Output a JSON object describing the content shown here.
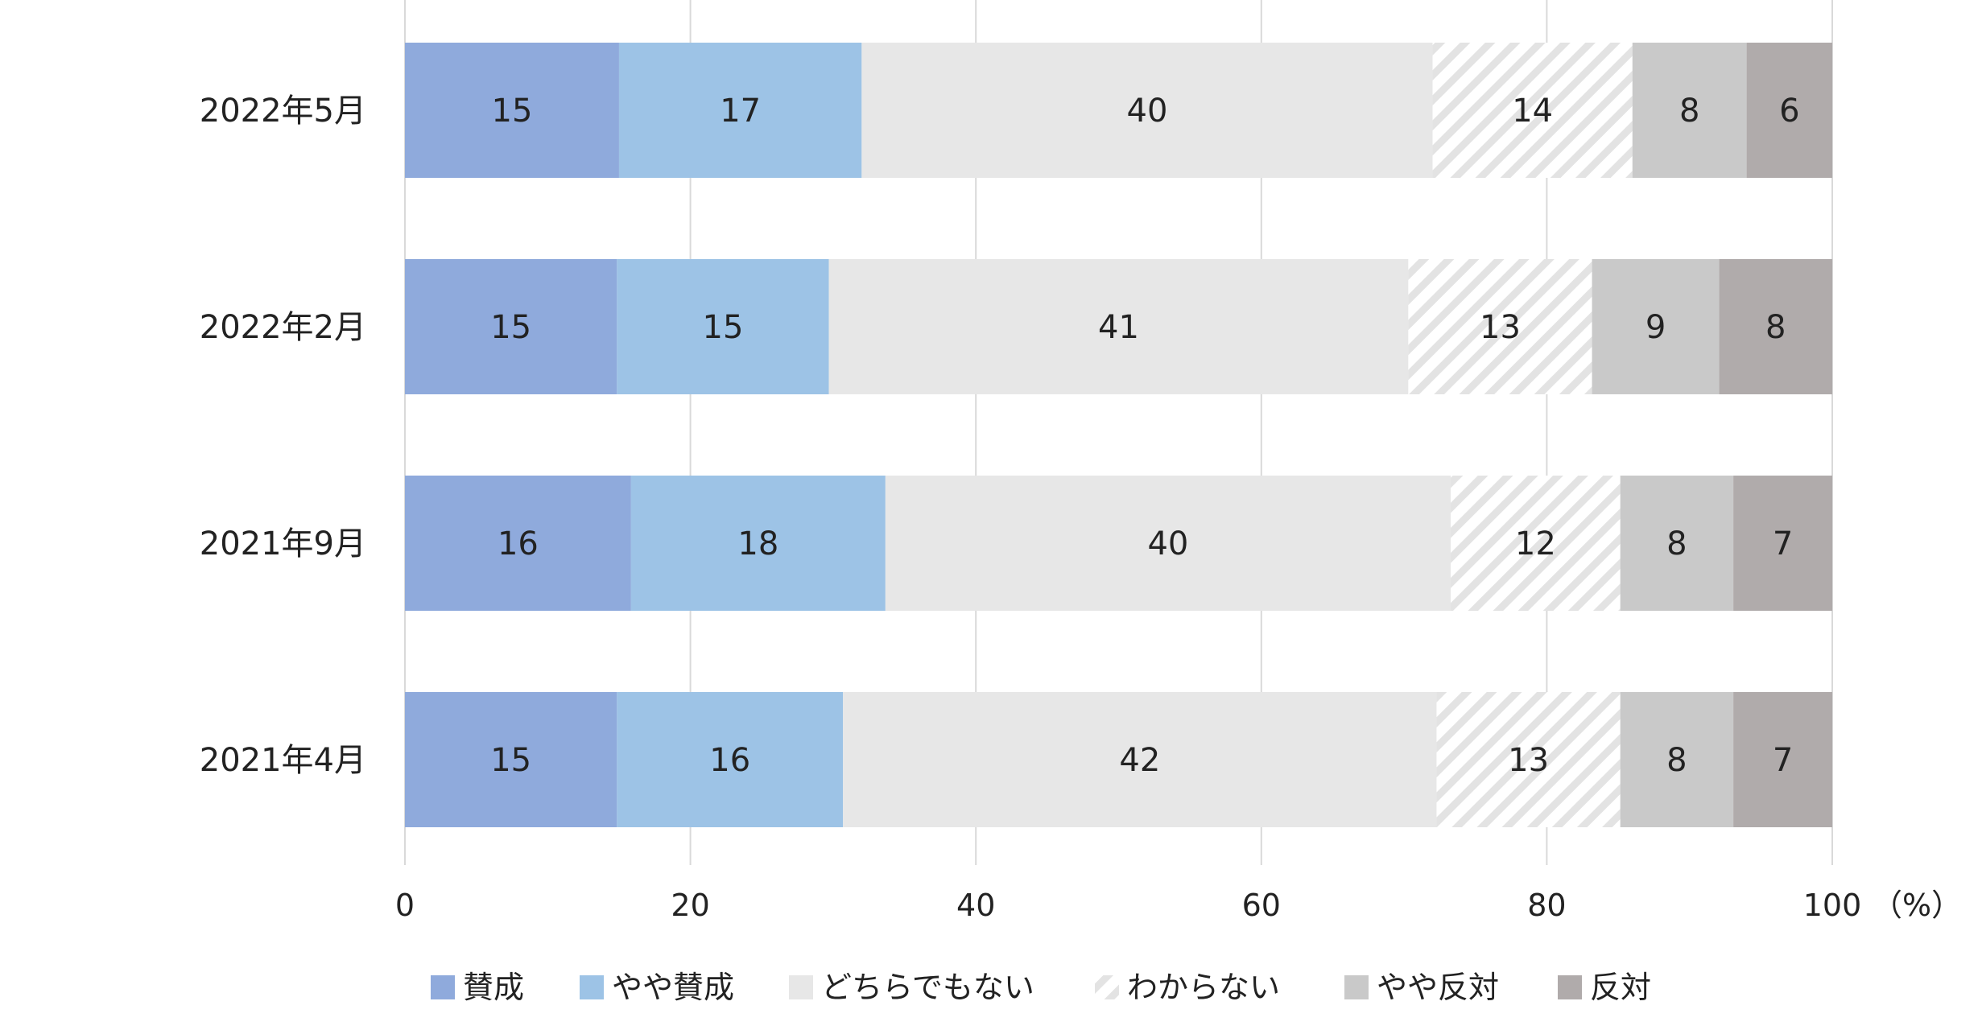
{
  "chart_data": {
    "type": "bar",
    "orientation": "horizontal-stacked",
    "categories": [
      "2022年5月",
      "2022年2月",
      "2021年9月",
      "2021年4月"
    ],
    "series": [
      {
        "name": "賛成",
        "values": [
          15,
          15,
          16,
          15
        ],
        "color": "#8faadc"
      },
      {
        "name": "やや賛成",
        "values": [
          17,
          15,
          18,
          16
        ],
        "color": "#9dc3e6"
      },
      {
        "name": "どちらでもない",
        "values": [
          40,
          41,
          40,
          42
        ],
        "color": "#e7e7e7"
      },
      {
        "name": "わからない",
        "values": [
          14,
          13,
          12,
          13
        ],
        "color": "#e3e3e3",
        "pattern": "diagonal-hatch"
      },
      {
        "name": "やや反対",
        "values": [
          8,
          9,
          8,
          8
        ],
        "color": "#c9c9c9"
      },
      {
        "name": "反対",
        "values": [
          6,
          8,
          7,
          7
        ],
        "color": "#b0abab"
      }
    ],
    "xlim": [
      0,
      100
    ],
    "xticks": [
      0,
      20,
      40,
      60,
      80,
      100
    ],
    "xunit": "（%）",
    "grid": true,
    "legend_position": "bottom"
  }
}
